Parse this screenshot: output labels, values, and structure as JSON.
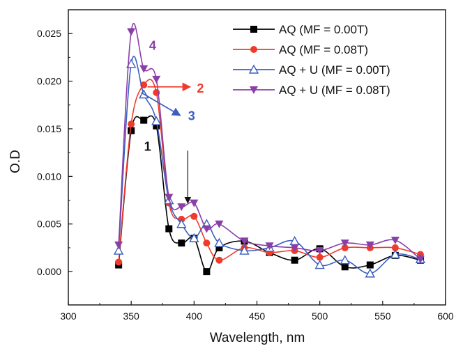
{
  "chart_data": {
    "type": "line",
    "title": "",
    "xlabel": "Wavelength, nm",
    "ylabel": "O.D",
    "xlim": [
      300,
      600
    ],
    "ylim": [
      -0.0035,
      0.0275
    ],
    "xticks": [
      300,
      350,
      400,
      450,
      500,
      550,
      600
    ],
    "yticks": [
      0.0,
      0.005,
      0.01,
      0.015,
      0.02,
      0.025
    ],
    "xtick_labels": [
      "300",
      "350",
      "400",
      "450",
      "500",
      "550",
      "600"
    ],
    "ytick_labels": [
      "0.000",
      "0.005",
      "0.010",
      "0.015",
      "0.020",
      "0.025"
    ],
    "grid": false,
    "legend_position": "top-right",
    "series": [
      {
        "name": "AQ (MF = 0.00T)",
        "color": "#000000",
        "marker": "square",
        "x": [
          340,
          350,
          360,
          370,
          380,
          390,
          400,
          410,
          420,
          440,
          460,
          480,
          500,
          520,
          540,
          560,
          580
        ],
        "y": [
          0.0007,
          0.0148,
          0.0159,
          0.0153,
          0.0045,
          0.003,
          0.0035,
          0.0,
          0.0025,
          0.0032,
          0.002,
          0.0012,
          0.0024,
          0.0005,
          0.0007,
          0.0017,
          0.0012
        ]
      },
      {
        "name": "AQ (MF = 0.08T)",
        "color": "#ef3b2c",
        "marker": "circle",
        "x": [
          340,
          350,
          360,
          370,
          380,
          390,
          400,
          410,
          420,
          440,
          460,
          480,
          500,
          520,
          540,
          560,
          580
        ],
        "y": [
          0.001,
          0.0155,
          0.0196,
          0.0188,
          0.0072,
          0.0055,
          0.0058,
          0.003,
          0.0012,
          0.0025,
          0.002,
          0.0022,
          0.0015,
          0.0025,
          0.0025,
          0.0025,
          0.0018
        ]
      },
      {
        "name": "AQ + U (MF = 0.00T)",
        "color": "#3b5fc0",
        "marker": "triangle-up-open",
        "x": [
          340,
          350,
          360,
          370,
          380,
          390,
          400,
          410,
          420,
          440,
          460,
          480,
          500,
          520,
          540,
          560,
          580
        ],
        "y": [
          0.0022,
          0.0218,
          0.0186,
          0.0158,
          0.0075,
          0.005,
          0.0035,
          0.005,
          0.003,
          0.0022,
          0.0025,
          0.0032,
          0.0007,
          0.0012,
          -0.0002,
          0.0018,
          0.0013
        ]
      },
      {
        "name": "AQ + U (MF = 0.08T)",
        "color": "#8a3fa8",
        "marker": "triangle-down",
        "x": [
          340,
          350,
          360,
          370,
          380,
          390,
          400,
          410,
          420,
          440,
          460,
          480,
          500,
          520,
          540,
          560,
          580
        ],
        "y": [
          0.0028,
          0.0252,
          0.0213,
          0.0202,
          0.0078,
          0.0068,
          0.0072,
          0.0045,
          0.005,
          0.0032,
          0.0027,
          0.0025,
          0.0022,
          0.003,
          0.0028,
          0.0033,
          0.0013
        ]
      }
    ],
    "annotations": [
      {
        "text": "1",
        "color": "#111111",
        "x": 363,
        "y": 0.0127
      },
      {
        "text": "2",
        "color": "#ef3b2c",
        "x": 405,
        "y": 0.0188,
        "arrow_from": [
          363,
          0.0194
        ],
        "arrow_to": [
          397,
          0.0194
        ]
      },
      {
        "text": "3",
        "color": "#3b5fc0",
        "x": 398,
        "y": 0.0159,
        "arrow_from": [
          358,
          0.0188
        ],
        "arrow_to": [
          389,
          0.0164
        ]
      },
      {
        "text": "4",
        "color": "#8a3fa8",
        "x": 367,
        "y": 0.0233
      },
      {
        "text": "",
        "color": "#111111",
        "arrow_from": [
          395,
          0.0127
        ],
        "arrow_to": [
          395,
          0.0072
        ]
      }
    ]
  }
}
